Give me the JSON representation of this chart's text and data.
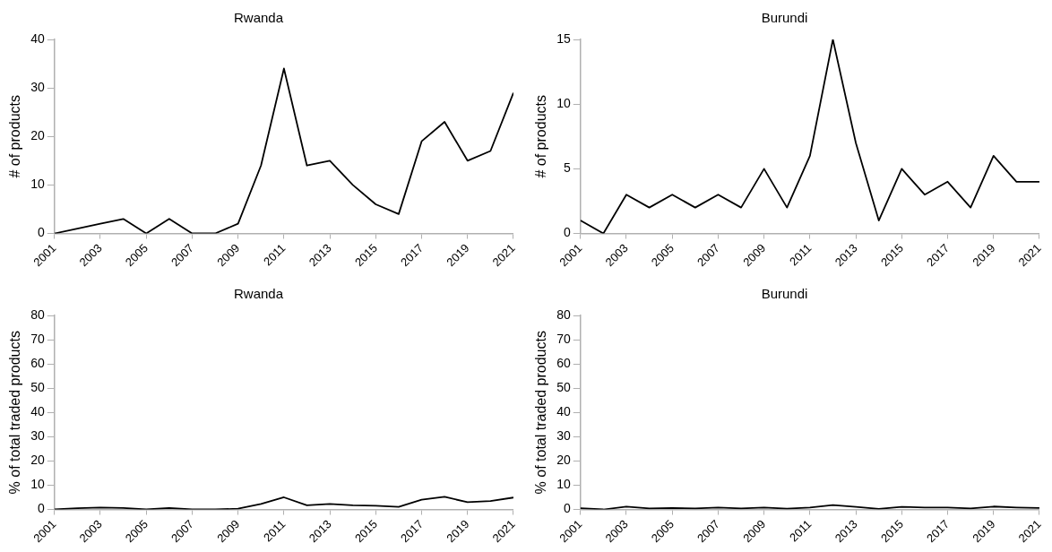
{
  "chart_data": [
    {
      "type": "line",
      "title": "Rwanda",
      "ylabel": "# of products",
      "x": [
        2001,
        2002,
        2003,
        2004,
        2005,
        2006,
        2007,
        2008,
        2009,
        2010,
        2011,
        2012,
        2013,
        2014,
        2015,
        2016,
        2017,
        2018,
        2019,
        2020,
        2021
      ],
      "series": [
        {
          "color": "#000000",
          "values": [
            0,
            1,
            2,
            3,
            0,
            3,
            0,
            0,
            2,
            14,
            34,
            14,
            15,
            10,
            6,
            4,
            19,
            23,
            15,
            17,
            29
          ]
        }
      ],
      "xlim": [
        2001,
        2021
      ],
      "xticks": [
        2001,
        2003,
        2005,
        2007,
        2009,
        2011,
        2013,
        2015,
        2017,
        2019,
        2021
      ],
      "ylim": [
        0,
        40
      ],
      "yticks": [
        0,
        10,
        20,
        30,
        40
      ],
      "grid": false,
      "legend": false,
      "marker": "none"
    },
    {
      "type": "line",
      "title": "Burundi",
      "ylabel": "# of products",
      "x": [
        2001,
        2002,
        2003,
        2004,
        2005,
        2006,
        2007,
        2008,
        2009,
        2010,
        2011,
        2012,
        2013,
        2014,
        2015,
        2016,
        2017,
        2018,
        2019,
        2020,
        2021
      ],
      "series": [
        {
          "color": "#000000",
          "values": [
            1,
            0,
            3,
            2,
            3,
            2,
            3,
            2,
            5,
            2,
            6,
            15,
            7,
            1,
            5,
            3,
            4,
            2,
            6,
            4,
            4
          ]
        }
      ],
      "xlim": [
        2001,
        2021
      ],
      "xticks": [
        2001,
        2003,
        2005,
        2007,
        2009,
        2011,
        2013,
        2015,
        2017,
        2019,
        2021
      ],
      "ylim": [
        0,
        15
      ],
      "yticks": [
        0,
        5,
        10,
        15
      ],
      "grid": false,
      "legend": false,
      "marker": "none"
    },
    {
      "type": "line",
      "title": "Rwanda",
      "ylabel": "% of total traded products",
      "x": [
        2001,
        2002,
        2003,
        2004,
        2005,
        2006,
        2007,
        2008,
        2009,
        2010,
        2011,
        2012,
        2013,
        2014,
        2015,
        2016,
        2017,
        2018,
        2019,
        2020,
        2021
      ],
      "series": [
        {
          "color": "#000000",
          "values": [
            0,
            0.5,
            0.8,
            0.6,
            0,
            0.6,
            0,
            0,
            0.3,
            2.3,
            5,
            1.7,
            2.3,
            1.7,
            1.5,
            1.1,
            4,
            5.2,
            3,
            3.5,
            4.9
          ]
        }
      ],
      "xlim": [
        2001,
        2021
      ],
      "xticks": [
        2001,
        2003,
        2005,
        2007,
        2009,
        2011,
        2013,
        2015,
        2017,
        2019,
        2021
      ],
      "ylim": [
        0,
        80
      ],
      "yticks": [
        0,
        10,
        20,
        30,
        40,
        50,
        60,
        70,
        80
      ],
      "grid": false,
      "legend": false,
      "marker": "none"
    },
    {
      "type": "line",
      "title": "Burundi",
      "ylabel": "% of total traded products",
      "x": [
        2001,
        2002,
        2003,
        2004,
        2005,
        2006,
        2007,
        2008,
        2009,
        2010,
        2011,
        2012,
        2013,
        2014,
        2015,
        2016,
        2017,
        2018,
        2019,
        2020,
        2021
      ],
      "series": [
        {
          "color": "#000000",
          "values": [
            0.5,
            0,
            1.2,
            0.4,
            0.6,
            0.4,
            0.8,
            0.4,
            0.8,
            0.3,
            0.8,
            1.8,
            1.1,
            0.2,
            1.1,
            0.8,
            0.8,
            0.4,
            1.2,
            0.8,
            0.6
          ]
        }
      ],
      "xlim": [
        2001,
        2021
      ],
      "xticks": [
        2001,
        2003,
        2005,
        2007,
        2009,
        2011,
        2013,
        2015,
        2017,
        2019,
        2021
      ],
      "ylim": [
        0,
        80
      ],
      "yticks": [
        0,
        10,
        20,
        30,
        40,
        50,
        60,
        70,
        80
      ],
      "grid": false,
      "legend": false,
      "marker": "none"
    }
  ]
}
